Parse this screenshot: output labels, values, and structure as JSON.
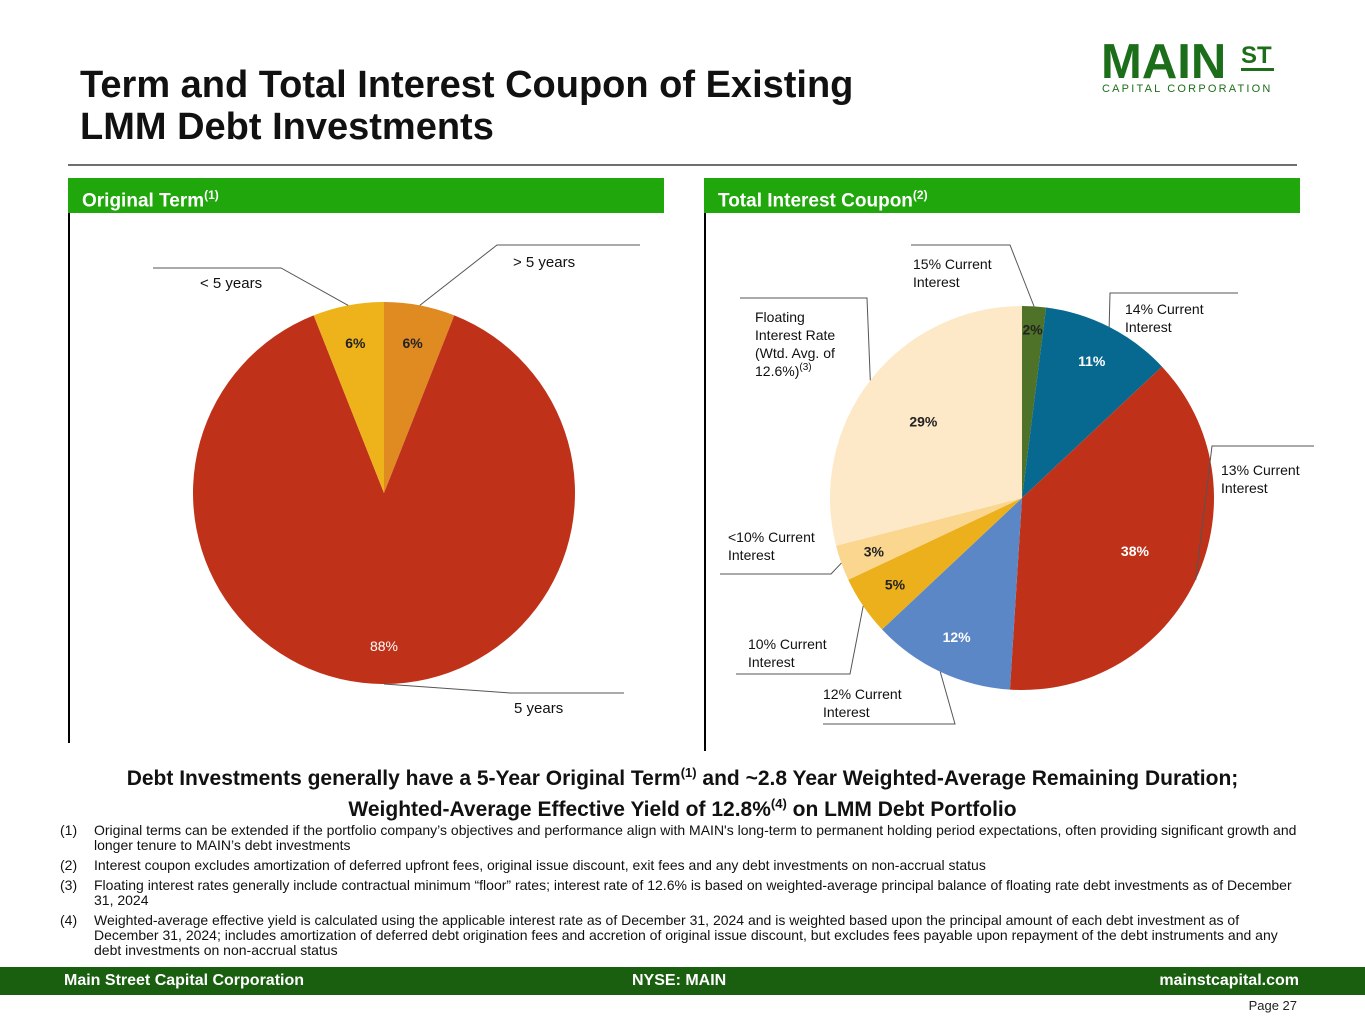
{
  "header": {
    "title_line1": "Term and Total Interest Coupon of Existing",
    "title_line2": "LMM Debt Investments",
    "logo_main": "MAIN",
    "logo_st": "ST",
    "logo_sub": "CAPITAL CORPORATION"
  },
  "colors": {
    "brand_green": "#1fa70b",
    "footer_green": "#1a5e10",
    "logo_green": "#1d6e1a"
  },
  "panels": {
    "left_title": "Original Term",
    "left_sup": "(1)",
    "right_title": "Total Interest Coupon",
    "right_sup": "(2)"
  },
  "chart_data": [
    {
      "type": "pie",
      "title": "Original Term",
      "slices": [
        {
          "label": "> 5 years",
          "value": 6,
          "value_label": "6%",
          "color": "#e08a22"
        },
        {
          "label": "5 years",
          "value": 88,
          "value_label": "88%",
          "color": "#bf3219"
        },
        {
          "label": "< 5 years",
          "value": 6,
          "value_label": "6%",
          "color": "#eeb31a"
        }
      ]
    },
    {
      "type": "pie",
      "title": "Total Interest Coupon",
      "slices": [
        {
          "label": "15% Current Interest",
          "value": 2,
          "value_label": "2%",
          "color": "#4e7228"
        },
        {
          "label": "14% Current Interest",
          "value": 11,
          "value_label": "11%",
          "color": "#07698f"
        },
        {
          "label": "13% Current Interest",
          "value": 38,
          "value_label": "38%",
          "color": "#bf3219"
        },
        {
          "label": "12% Current Interest",
          "value": 12,
          "value_label": "12%",
          "color": "#5b87c6"
        },
        {
          "label": "10% Current Interest",
          "value": 5,
          "value_label": "5%",
          "color": "#ecb01c"
        },
        {
          "label": "<10% Current Interest",
          "value": 3,
          "value_label": "3%",
          "color": "#fbd68e"
        },
        {
          "label": "Floating Interest Rate (Wtd. Avg. of 12.6%)",
          "label_sup": "(3)",
          "value": 29,
          "value_label": "29%",
          "color": "#fde9c8"
        }
      ]
    }
  ],
  "summary": {
    "part1": "Debt Investments generally have a 5-Year Original Term",
    "sup1": "(1)",
    "part2": " and ~2.8 Year Weighted-Average Remaining Duration; Weighted-Average Effective Yield of 12.8%",
    "sup2": "(4)",
    "part3": " on LMM Debt Portfolio"
  },
  "footnotes": [
    {
      "num": "(1)",
      "text": "Original terms can be extended if the portfolio company’s objectives and performance align with MAIN's long-term to permanent holding period expectations, often providing significant growth and longer tenure to MAIN’s debt investments"
    },
    {
      "num": "(2)",
      "text": "Interest coupon excludes amortization of deferred upfront fees, original issue discount, exit fees and any debt investments on non-accrual status"
    },
    {
      "num": "(3)",
      "text": "Floating interest rates generally include contractual minimum “floor” rates; interest rate of 12.6% is based on weighted-average principal balance of floating rate debt investments as of December 31, 2024"
    },
    {
      "num": "(4)",
      "text": "Weighted-average effective yield is calculated using the applicable interest rate as of December 31, 2024 and is weighted based upon the principal amount of each debt investment as of December 31, 2024; includes amortization of deferred debt origination fees and accretion of original issue discount, but excludes fees payable upon repayment of the debt instruments and any debt investments on non-accrual status"
    }
  ],
  "footer": {
    "left": "Main Street Capital Corporation",
    "center": "NYSE: MAIN",
    "right": "mainstcapital.com"
  },
  "page_label": "Page  27"
}
